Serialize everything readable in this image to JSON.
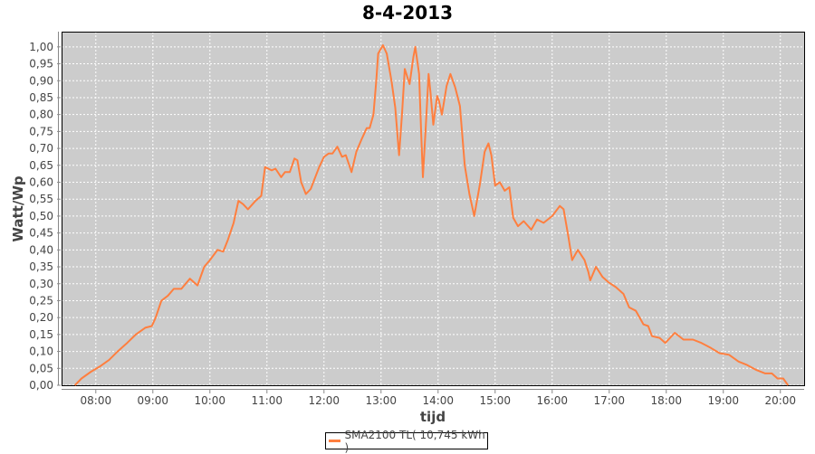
{
  "chart_data": {
    "type": "line",
    "title": "8-4-2013",
    "xlabel": "tijd",
    "ylabel": "Watt/Wp",
    "xlim": [
      "07:24",
      "20:25"
    ],
    "ylim": [
      0,
      1.045
    ],
    "grid": true,
    "legend_placement": "bottom",
    "background_color": "#cccccc",
    "x_ticks": [
      "08:00",
      "09:00",
      "10:00",
      "11:00",
      "12:00",
      "13:00",
      "14:00",
      "15:00",
      "16:00",
      "17:00",
      "18:00",
      "19:00",
      "20:00"
    ],
    "y_ticks": [
      "0,00",
      "0,05",
      "0,10",
      "0,15",
      "0,20",
      "0,25",
      "0,30",
      "0,35",
      "0,40",
      "0,45",
      "0,50",
      "0,55",
      "0,60",
      "0,65",
      "0,70",
      "0,75",
      "0,80",
      "0,85",
      "0,90",
      "0,95",
      "1,00"
    ],
    "series": [
      {
        "name": "SMA2100 TL( 10,745 kWh )",
        "color": "#ff7f3f",
        "points": [
          [
            "07:38",
            0.0
          ],
          [
            "07:45",
            0.02
          ],
          [
            "07:55",
            0.04
          ],
          [
            "08:04",
            0.055
          ],
          [
            "08:14",
            0.075
          ],
          [
            "08:23",
            0.1
          ],
          [
            "08:33",
            0.125
          ],
          [
            "08:42",
            0.15
          ],
          [
            "08:52",
            0.17
          ],
          [
            "08:59",
            0.175
          ],
          [
            "09:03",
            0.2
          ],
          [
            "09:09",
            0.25
          ],
          [
            "09:16",
            0.265
          ],
          [
            "09:22",
            0.285
          ],
          [
            "09:30",
            0.285
          ],
          [
            "09:39",
            0.315
          ],
          [
            "09:47",
            0.295
          ],
          [
            "09:54",
            0.35
          ],
          [
            "10:00",
            0.37
          ],
          [
            "10:08",
            0.4
          ],
          [
            "10:14",
            0.395
          ],
          [
            "10:19",
            0.43
          ],
          [
            "10:25",
            0.48
          ],
          [
            "10:30",
            0.545
          ],
          [
            "10:35",
            0.535
          ],
          [
            "10:40",
            0.52
          ],
          [
            "10:48",
            0.545
          ],
          [
            "10:54",
            0.56
          ],
          [
            "10:58",
            0.645
          ],
          [
            "11:05",
            0.635
          ],
          [
            "11:09",
            0.64
          ],
          [
            "11:15",
            0.615
          ],
          [
            "11:19",
            0.63
          ],
          [
            "11:24",
            0.63
          ],
          [
            "11:29",
            0.67
          ],
          [
            "11:32",
            0.665
          ],
          [
            "11:36",
            0.6
          ],
          [
            "11:41",
            0.565
          ],
          [
            "11:46",
            0.58
          ],
          [
            "11:55",
            0.645
          ],
          [
            "12:00",
            0.675
          ],
          [
            "12:05",
            0.685
          ],
          [
            "12:09",
            0.685
          ],
          [
            "12:14",
            0.705
          ],
          [
            "12:19",
            0.675
          ],
          [
            "12:23",
            0.68
          ],
          [
            "12:29",
            0.63
          ],
          [
            "12:34",
            0.69
          ],
          [
            "12:40",
            0.73
          ],
          [
            "12:45",
            0.76
          ],
          [
            "12:48",
            0.76
          ],
          [
            "12:52",
            0.8
          ],
          [
            "12:55",
            0.9
          ],
          [
            "12:57",
            0.98
          ],
          [
            "13:02",
            1.005
          ],
          [
            "13:06",
            0.98
          ],
          [
            "13:11",
            0.9
          ],
          [
            "13:15",
            0.82
          ],
          [
            "13:19",
            0.68
          ],
          [
            "13:22",
            0.8
          ],
          [
            "13:25",
            0.935
          ],
          [
            "13:30",
            0.89
          ],
          [
            "13:34",
            0.97
          ],
          [
            "13:36",
            1.0
          ],
          [
            "13:40",
            0.92
          ],
          [
            "13:42",
            0.76
          ],
          [
            "13:44",
            0.615
          ],
          [
            "13:47",
            0.76
          ],
          [
            "13:50",
            0.92
          ],
          [
            "13:52",
            0.865
          ],
          [
            "13:55",
            0.77
          ],
          [
            "13:59",
            0.855
          ],
          [
            "14:01",
            0.84
          ],
          [
            "14:04",
            0.8
          ],
          [
            "14:09",
            0.885
          ],
          [
            "14:13",
            0.92
          ],
          [
            "14:18",
            0.88
          ],
          [
            "14:23",
            0.825
          ],
          [
            "14:28",
            0.65
          ],
          [
            "14:33",
            0.565
          ],
          [
            "14:38",
            0.5
          ],
          [
            "14:44",
            0.595
          ],
          [
            "14:49",
            0.69
          ],
          [
            "14:53",
            0.715
          ],
          [
            "14:56",
            0.68
          ],
          [
            "15:00",
            0.59
          ],
          [
            "15:05",
            0.6
          ],
          [
            "15:10",
            0.575
          ],
          [
            "15:15",
            0.585
          ],
          [
            "15:19",
            0.495
          ],
          [
            "15:24",
            0.47
          ],
          [
            "15:30",
            0.485
          ],
          [
            "15:38",
            0.46
          ],
          [
            "15:44",
            0.49
          ],
          [
            "15:51",
            0.48
          ],
          [
            "16:00",
            0.5
          ],
          [
            "16:08",
            0.53
          ],
          [
            "16:12",
            0.52
          ],
          [
            "16:17",
            0.44
          ],
          [
            "16:21",
            0.37
          ],
          [
            "16:27",
            0.4
          ],
          [
            "16:34",
            0.37
          ],
          [
            "16:38",
            0.335
          ],
          [
            "16:40",
            0.31
          ],
          [
            "16:46",
            0.35
          ],
          [
            "16:53",
            0.32
          ],
          [
            "16:59",
            0.305
          ],
          [
            "17:07",
            0.29
          ],
          [
            "17:15",
            0.27
          ],
          [
            "17:21",
            0.23
          ],
          [
            "17:28",
            0.22
          ],
          [
            "17:36",
            0.18
          ],
          [
            "17:41",
            0.175
          ],
          [
            "17:45",
            0.145
          ],
          [
            "17:53",
            0.14
          ],
          [
            "17:59",
            0.125
          ],
          [
            "18:09",
            0.155
          ],
          [
            "18:18",
            0.135
          ],
          [
            "18:28",
            0.135
          ],
          [
            "18:37",
            0.125
          ],
          [
            "18:47",
            0.11
          ],
          [
            "18:56",
            0.095
          ],
          [
            "19:06",
            0.09
          ],
          [
            "19:16",
            0.07
          ],
          [
            "19:25",
            0.06
          ],
          [
            "19:35",
            0.045
          ],
          [
            "19:44",
            0.035
          ],
          [
            "19:51",
            0.035
          ],
          [
            "19:57",
            0.02
          ],
          [
            "20:03",
            0.02
          ],
          [
            "20:08",
            0.0
          ]
        ]
      }
    ]
  },
  "legend": {
    "label": "SMA2100 TL( 10,745 kWh )"
  }
}
